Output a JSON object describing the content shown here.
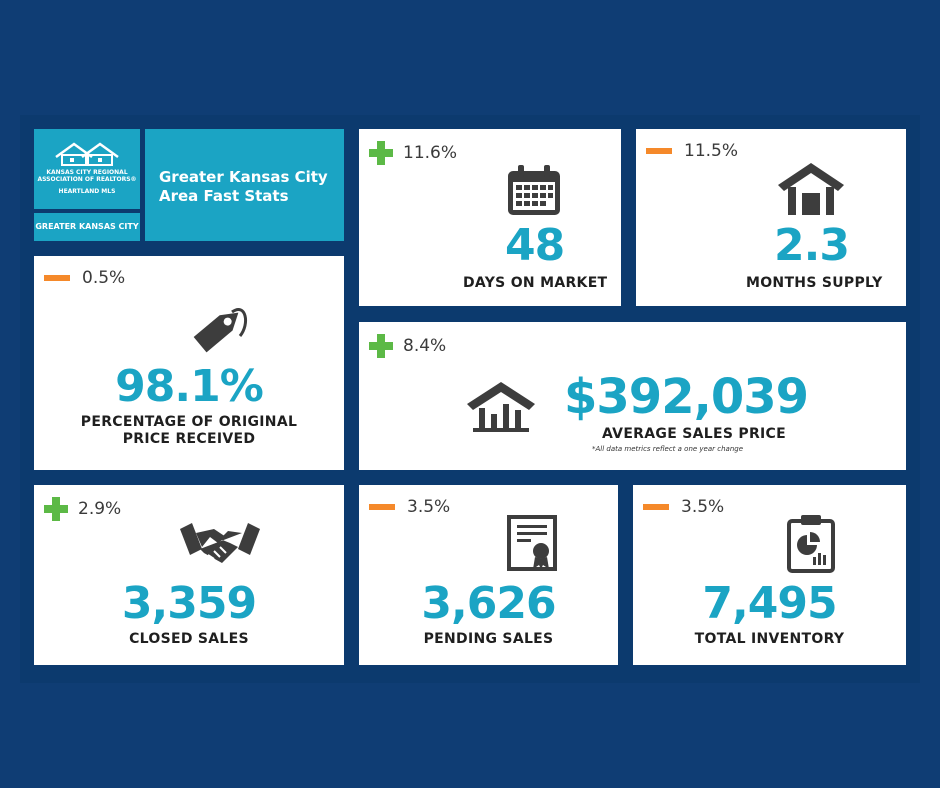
{
  "logo": {
    "org_line1": "KANSAS CITY REGIONAL",
    "org_line2": "ASSOCIATION OF REALTORS®",
    "mls": "HEARTLAND MLS",
    "region": "GREATER KANSAS CITY"
  },
  "header": {
    "title_line1": "Greater Kansas City",
    "title_line2": "Area Fast Stats"
  },
  "stats": {
    "days_on_market": {
      "change": "11.6%",
      "direction": "up",
      "value": "48",
      "label": "DAYS ON MARKET",
      "icon": "calendar-icon"
    },
    "months_supply": {
      "change": "11.5%",
      "direction": "down",
      "value": "2.3",
      "label": "MONTHS SUPPLY",
      "icon": "house-icon"
    },
    "pct_original_price": {
      "change": "0.5%",
      "direction": "down",
      "value": "98.1%",
      "label_line1": "PERCENTAGE OF ORIGINAL",
      "label_line2": "PRICE RECEIVED",
      "icon": "price-tag-icon"
    },
    "avg_sales_price": {
      "change": "8.4%",
      "direction": "up",
      "value": "$392,039",
      "label": "AVERAGE SALES PRICE",
      "note": "*All data metrics reflect a one year change",
      "icon": "house-chart-icon"
    },
    "closed_sales": {
      "change": "2.9%",
      "direction": "up",
      "value": "3,359",
      "label": "CLOSED SALES",
      "icon": "handshake-icon"
    },
    "pending_sales": {
      "change": "3.5%",
      "direction": "down",
      "value": "3,626",
      "label": "PENDING SALES",
      "icon": "certificate-icon"
    },
    "total_inventory": {
      "change": "3.5%",
      "direction": "down",
      "value": "7,495",
      "label": "TOTAL INVENTORY",
      "icon": "clipboard-chart-icon"
    }
  },
  "colors": {
    "background": "#0f3d74",
    "accent_teal": "#1ba4c4",
    "up_green": "#5cb946",
    "down_orange": "#f5892a",
    "icon_gray": "#3d3d3d"
  }
}
